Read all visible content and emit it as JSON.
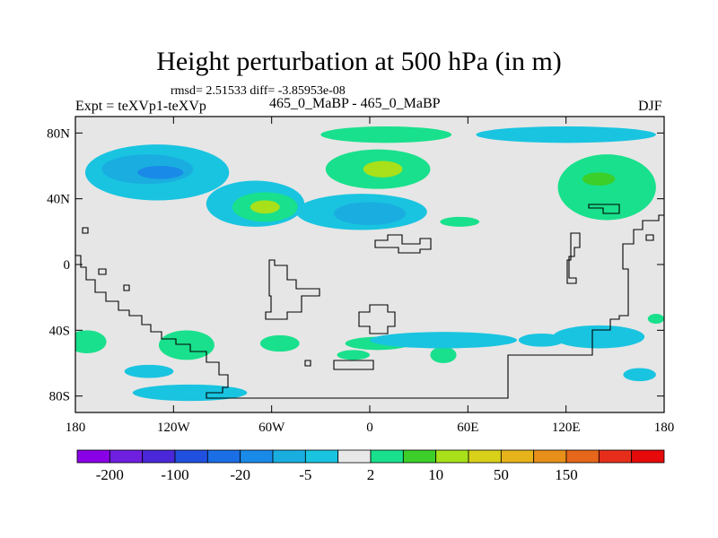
{
  "title": "Height perturbation at 500 hPa (in m)",
  "stats": "rmsd= 2.51533 diff= -3.85953e-08",
  "expt_label": "Expt = teXVp1-teXVp",
  "cases_label": "465_0_MaBP - 465_0_MaBP",
  "season": "DJF",
  "colors": {
    "background": "#e6e6e6",
    "coast": "#000000",
    "levels": [
      "#8a00e6",
      "#6e1fe0",
      "#4a27d8",
      "#2050e0",
      "#1a6ee6",
      "#1a8ae8",
      "#1aaee0",
      "#19c4e0",
      "#e8e8e8",
      "#19e08c",
      "#3ccf2a",
      "#a8e01a",
      "#d9d01a",
      "#e6b41a",
      "#e6901a",
      "#e6661a",
      "#e62e1a",
      "#e60a0a"
    ]
  },
  "chart_data": {
    "type": "contour-map",
    "variable": "500 hPa height perturbation",
    "units": "m",
    "xlim": [
      -180,
      180
    ],
    "ylim": [
      -90,
      90
    ],
    "x_ticks": [
      {
        "value": -180,
        "label": "180"
      },
      {
        "value": -120,
        "label": "120W"
      },
      {
        "value": -60,
        "label": "60W"
      },
      {
        "value": 0,
        "label": "0"
      },
      {
        "value": 60,
        "label": "60E"
      },
      {
        "value": 120,
        "label": "120E"
      },
      {
        "value": 180,
        "label": "180"
      }
    ],
    "y_ticks": [
      {
        "value": 80,
        "label": "80N"
      },
      {
        "value": 40,
        "label": "40N"
      },
      {
        "value": 0,
        "label": "0"
      },
      {
        "value": -40,
        "label": "40S"
      },
      {
        "value": -80,
        "label": "80S"
      }
    ],
    "colorbar_labels": [
      "-200",
      "-100",
      "-20",
      "-5",
      "2",
      "10",
      "50",
      "150"
    ],
    "regions": [
      {
        "lon": 10,
        "lat": 79,
        "rx": 40,
        "ry": 5,
        "level": 9
      },
      {
        "lon": -130,
        "lat": 56,
        "rx": 44,
        "ry": 17,
        "level": 7
      },
      {
        "lon": -136,
        "lat": 58,
        "rx": 28,
        "ry": 9,
        "level": 6
      },
      {
        "lon": -128,
        "lat": 56,
        "rx": 14,
        "ry": 4,
        "level": 5
      },
      {
        "lon": -70,
        "lat": 37,
        "rx": 30,
        "ry": 14,
        "level": 7
      },
      {
        "lon": -64,
        "lat": 35,
        "rx": 20,
        "ry": 9,
        "level": 9
      },
      {
        "lon": -64,
        "lat": 35,
        "rx": 9,
        "ry": 4,
        "level": 11
      },
      {
        "lon": 5,
        "lat": 58,
        "rx": 32,
        "ry": 12,
        "level": 9
      },
      {
        "lon": 8,
        "lat": 58,
        "rx": 12,
        "ry": 5,
        "level": 11
      },
      {
        "lon": -5,
        "lat": 32,
        "rx": 40,
        "ry": 11,
        "level": 7
      },
      {
        "lon": 0,
        "lat": 31,
        "rx": 22,
        "ry": 7,
        "level": 6
      },
      {
        "lon": 120,
        "lat": 79,
        "rx": 55,
        "ry": 5,
        "level": 7
      },
      {
        "lon": 145,
        "lat": 47,
        "rx": 30,
        "ry": 20,
        "level": 9
      },
      {
        "lon": 140,
        "lat": 52,
        "rx": 10,
        "ry": 4,
        "level": 10
      },
      {
        "lon": 55,
        "lat": 26,
        "rx": 12,
        "ry": 3,
        "level": 9
      },
      {
        "lon": -173,
        "lat": -47,
        "rx": 12,
        "ry": 7,
        "level": 9
      },
      {
        "lon": -112,
        "lat": -49,
        "rx": 17,
        "ry": 9,
        "level": 9
      },
      {
        "lon": -135,
        "lat": -65,
        "rx": 15,
        "ry": 4,
        "level": 7
      },
      {
        "lon": -110,
        "lat": -78,
        "rx": 35,
        "ry": 5,
        "level": 7
      },
      {
        "lon": -55,
        "lat": -48,
        "rx": 12,
        "ry": 5,
        "level": 9
      },
      {
        "lon": 5,
        "lat": -48,
        "rx": 20,
        "ry": 4,
        "level": 9
      },
      {
        "lon": -10,
        "lat": -55,
        "rx": 10,
        "ry": 3,
        "level": 9
      },
      {
        "lon": 45,
        "lat": -55,
        "rx": 8,
        "ry": 5,
        "level": 9
      },
      {
        "lon": 45,
        "lat": -46,
        "rx": 45,
        "ry": 5,
        "level": 7
      },
      {
        "lon": 140,
        "lat": -44,
        "rx": 28,
        "ry": 7,
        "level": 7
      },
      {
        "lon": 105,
        "lat": -46,
        "rx": 14,
        "ry": 4,
        "level": 7
      },
      {
        "lon": 165,
        "lat": -67,
        "rx": 10,
        "ry": 4,
        "level": 7
      },
      {
        "lon": 175,
        "lat": -33,
        "rx": 5,
        "ry": 3,
        "level": 9
      }
    ]
  }
}
